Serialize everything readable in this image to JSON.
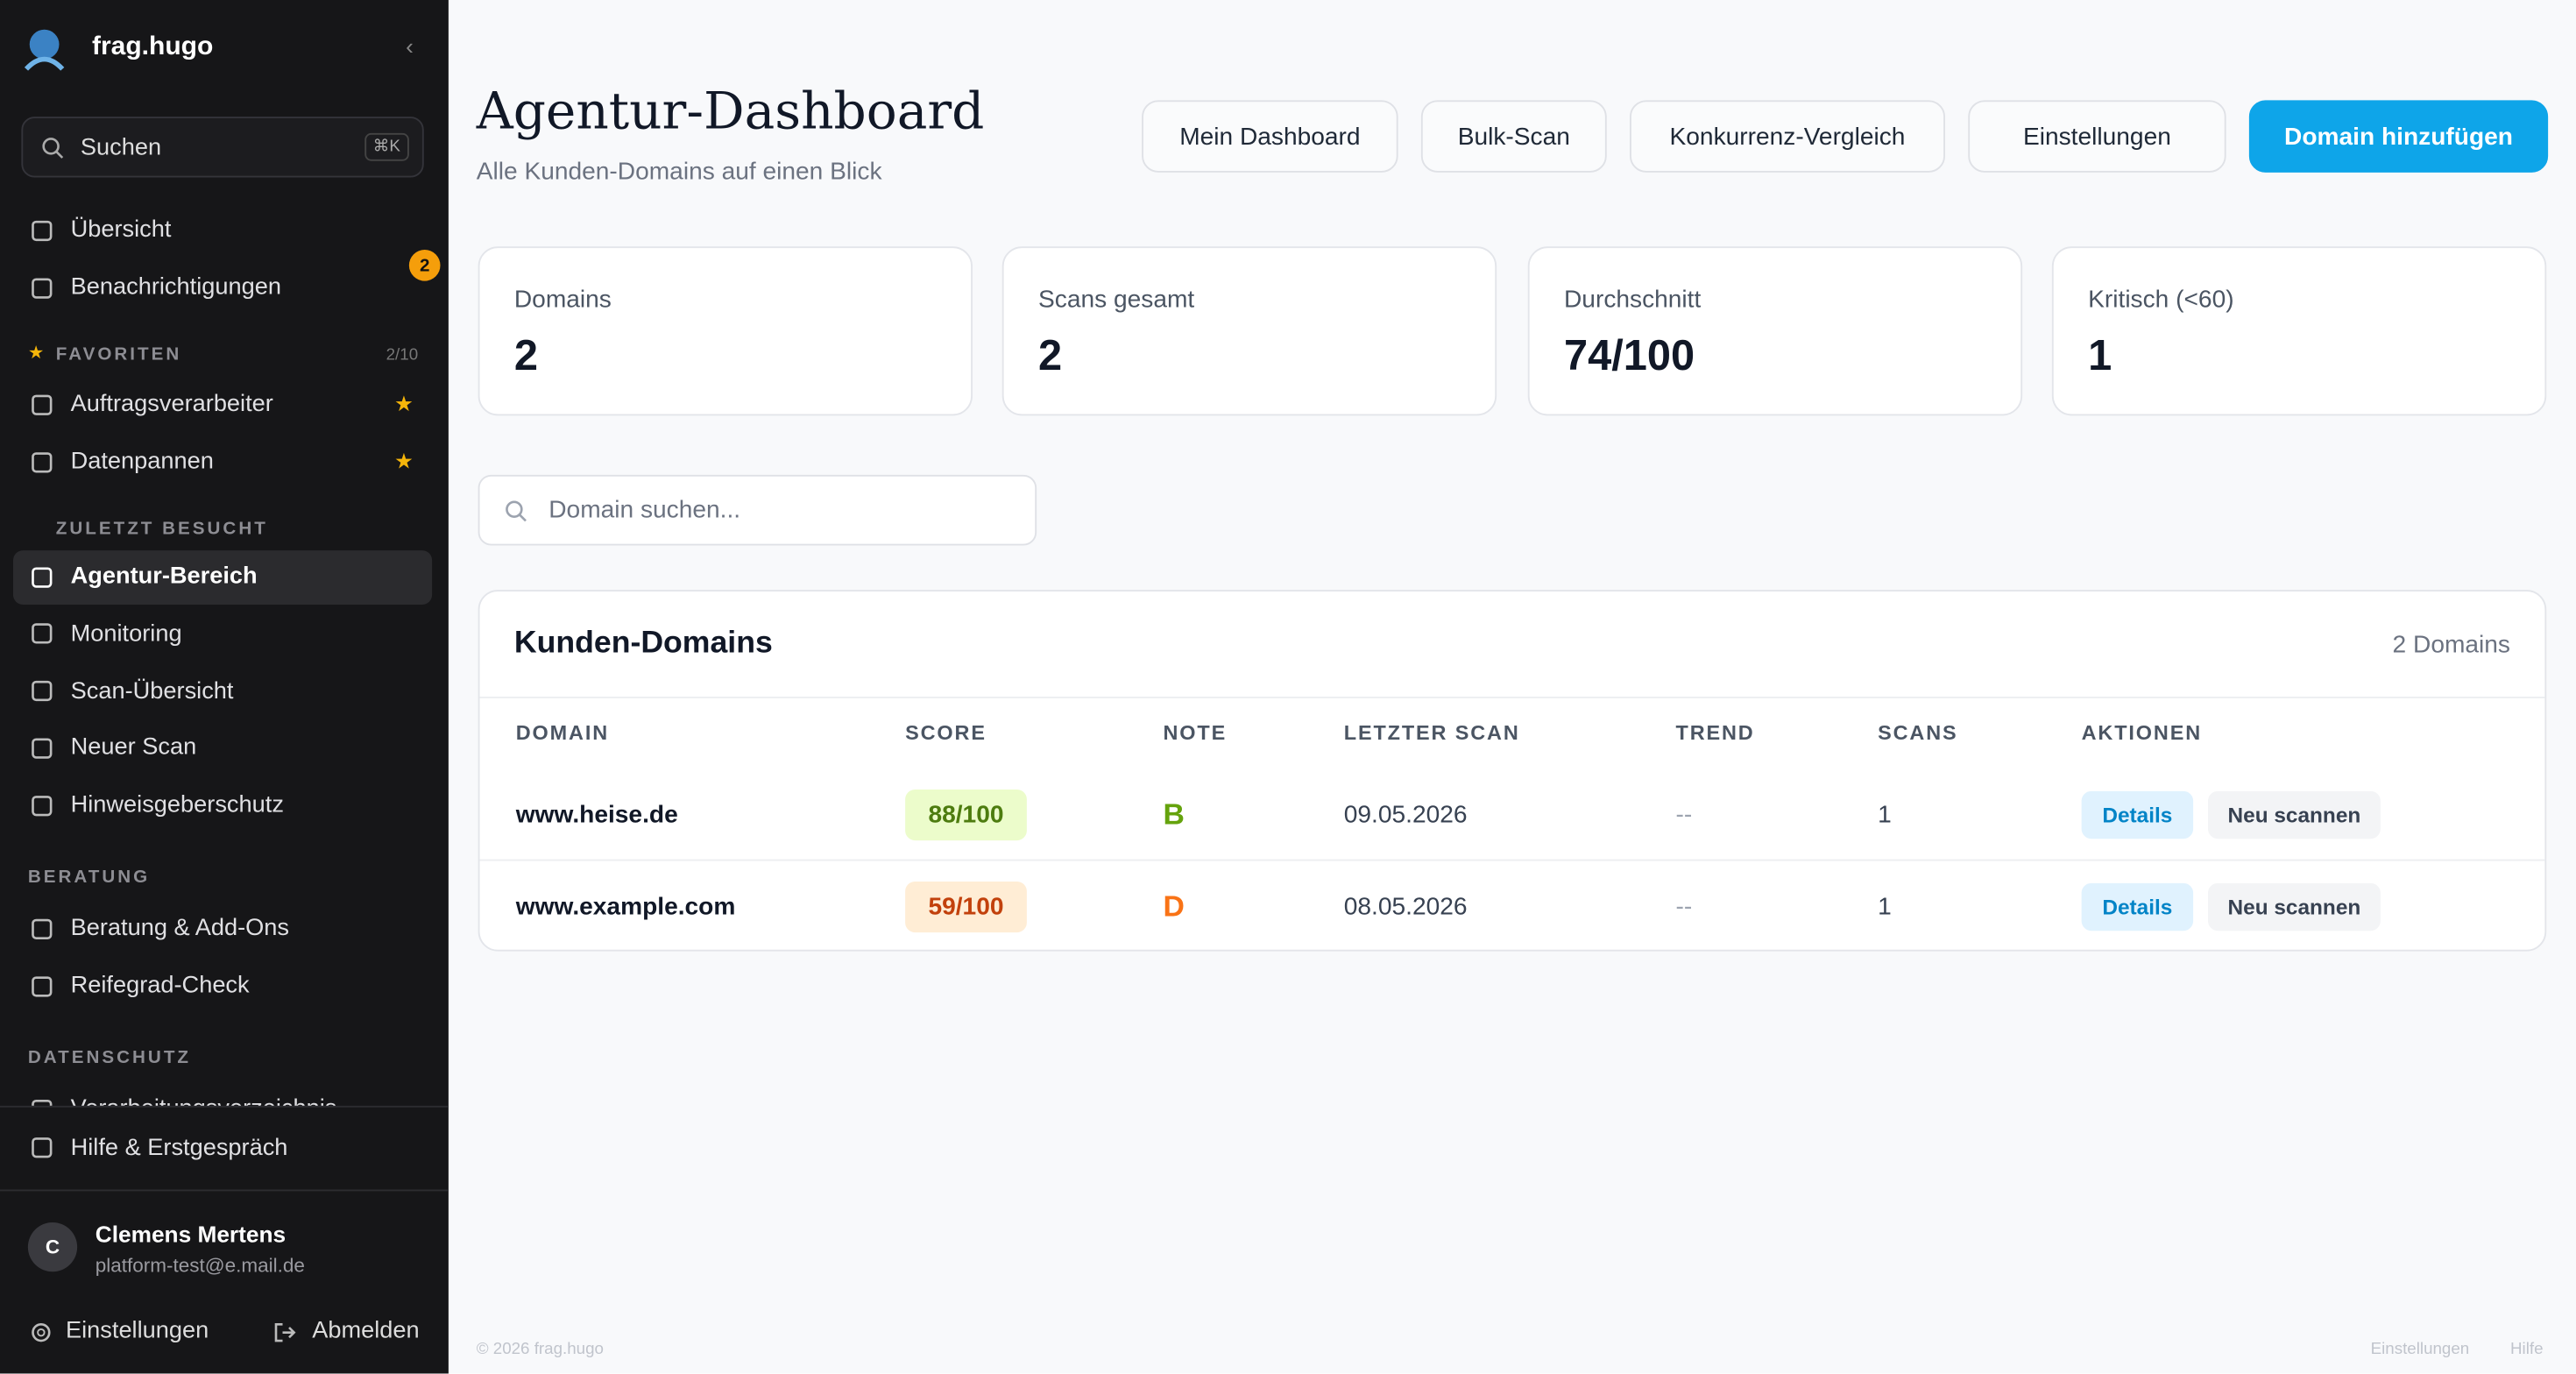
{
  "sidebar": {
    "brand": "frag.hugo",
    "search": "Suchen",
    "shortcut": "⌘K",
    "nav": [
      {
        "label": "Übersicht"
      },
      {
        "label": "Benachrichtigungen",
        "badge": 2
      }
    ],
    "favorites": {
      "title": "FAVORITEN",
      "count": "2/10",
      "items": [
        "Auftragsverarbeiter",
        "Datenpannen"
      ]
    },
    "recent": {
      "title": "ZULETZT BESUCHT",
      "items": [
        "Agentur-Bereich",
        "Monitoring",
        "Scan-Übersicht",
        "Neuer Scan",
        "Hinweisgeberschutz"
      ]
    },
    "beratung": {
      "title": "BERATUNG",
      "items": [
        "Beratung & Add-Ons",
        "Reifegrad-Check"
      ]
    },
    "datenschutz": {
      "title": "DATENSCHUTZ",
      "items": [
        "Verarbeitungsverzeichnis"
      ]
    },
    "help": "Hilfe & Erstgespräch",
    "user": {
      "initial": "C",
      "name": "Clemens Mertens",
      "email": "platform-test@e.mail.de"
    },
    "settings": "Einstellungen",
    "logout": "Abmelden"
  },
  "header": {
    "title": "Agentur-Dashboard",
    "subtitle": "Alle Kunden-Domains auf einen Blick",
    "buttons": [
      "Mein Dashboard",
      "Bulk-Scan",
      "Konkurrenz-Vergleich",
      "Einstellungen"
    ],
    "primary": "Domain hinzufügen"
  },
  "stats": [
    {
      "label": "Domains",
      "value": 2
    },
    {
      "label": "Scans gesamt",
      "value": 2
    },
    {
      "label": "Durchschnitt",
      "value": "74/100"
    },
    {
      "label": "Kritisch (<60)",
      "value": 1
    }
  ],
  "search_placeholder": "Domain suchen...",
  "table": {
    "title": "Kunden-Domains",
    "count": "2 Domains",
    "columns": [
      "DOMAIN",
      "SCORE",
      "NOTE",
      "LETZTER SCAN",
      "TREND",
      "SCANS",
      "AKTIONEN"
    ],
    "rows": [
      {
        "domain": "www.heise.de",
        "score": "88/100",
        "grade": "B",
        "last_scan": "09.05.2026",
        "trend": "--",
        "scans": 1,
        "actions": [
          "Details",
          "Neu scannen"
        ]
      },
      {
        "domain": "www.example.com",
        "score": "59/100",
        "grade": "D",
        "last_scan": "08.05.2026",
        "trend": "--",
        "scans": 1,
        "actions": [
          "Details",
          "Neu scannen"
        ]
      }
    ]
  },
  "footer": {
    "copyright": "© 2026 frag.hugo",
    "links": [
      "Einstellungen",
      "Hilfe"
    ]
  }
}
